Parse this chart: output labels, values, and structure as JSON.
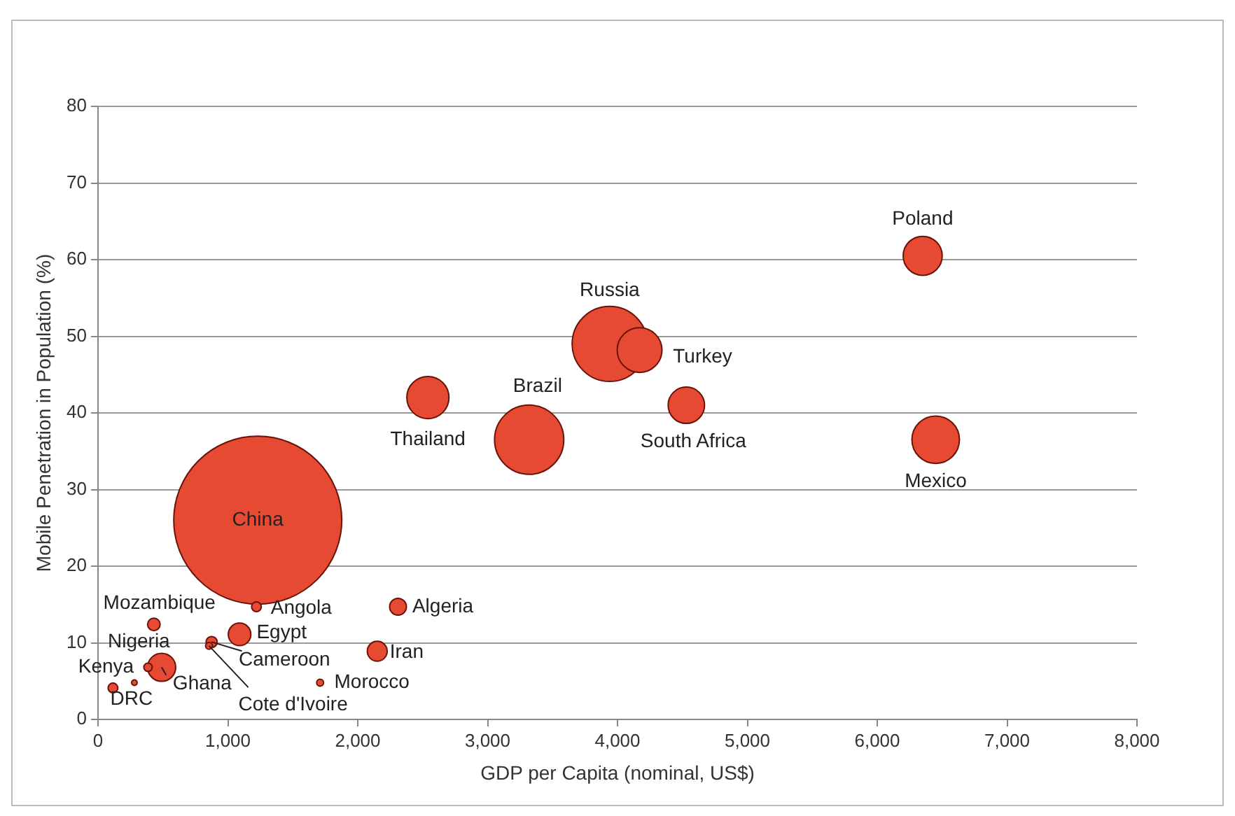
{
  "chart_data": {
    "type": "bubble",
    "xlabel": "GDP per Capita (nominal, US$)",
    "ylabel": "Mobile Penetration in Population (%)",
    "series": [
      {
        "color": "#e64a32",
        "x": [
          1230,
          6350,
          3940,
          4170,
          2540,
          3320,
          4530,
          6450,
          430,
          1220,
          2310,
          1090,
          875,
          855,
          2150,
          490,
          385,
          1710,
          280,
          115
        ],
        "values": [
          26,
          60.5,
          49,
          48.2,
          42,
          36.5,
          41,
          36.5,
          12.4,
          14.7,
          14.7,
          11.1,
          10.1,
          9.6,
          8.9,
          6.8,
          6.8,
          4.8,
          4.8,
          4.1
        ],
        "sizes": [
          1,
          0.054,
          0.2,
          0.071,
          0.063,
          0.17,
          0.047,
          0.08,
          0.0056,
          0.0034,
          0.01,
          0.018,
          0.0044,
          0.0017,
          0.014,
          0.028,
          0.0025,
          0.0017,
          0.0011,
          0.0034
        ]
      }
    ],
    "xlim": [
      0,
      8000
    ],
    "xticks": [
      0,
      {
        "value": 1000,
        "label": "1,000"
      },
      {
        "value": 2000,
        "label": "2,000"
      },
      {
        "value": 3000,
        "label": "3,000"
      },
      {
        "value": 4000,
        "label": "4,000"
      },
      {
        "value": 5000,
        "label": "5,000"
      },
      {
        "value": 6000,
        "label": "6,000"
      },
      {
        "value": 7000,
        "label": "7,000"
      },
      {
        "value": 8000,
        "label": "8,000"
      }
    ],
    "ylim": [
      0,
      80
    ],
    "yticks": [
      0,
      10,
      20,
      30,
      40,
      50,
      60,
      70,
      80
    ],
    "grid": "y",
    "legend": false,
    "annotations": [
      {
        "text": "China",
        "x": 1230,
        "y": 26
      },
      {
        "text": "Poland",
        "x": 6350,
        "y": 60.5
      },
      {
        "text": "Russia",
        "x": 3940,
        "y": 49
      },
      {
        "text": "Turkey",
        "x": 4170,
        "y": 48.2
      },
      {
        "text": "Brazil",
        "x": 3320,
        "y": 36.5
      },
      {
        "text": "Thailand",
        "x": 2540,
        "y": 42
      },
      {
        "text": "South Africa",
        "x": 4530,
        "y": 41
      },
      {
        "text": "Mexico",
        "x": 6450,
        "y": 36.5
      },
      {
        "text": "Mozambique",
        "x": 430,
        "y": 12.4
      },
      {
        "text": "Angola",
        "x": 1220,
        "y": 14.7
      },
      {
        "text": "Algeria",
        "x": 2310,
        "y": 14.7
      },
      {
        "text": "Egypt",
        "x": 1090,
        "y": 11.1
      },
      {
        "text": "Nigeria",
        "x": 875,
        "y": 10.1
      },
      {
        "text": "Cameroon",
        "x": 875,
        "y": 10.1
      },
      {
        "text": "Iran",
        "x": 2150,
        "y": 8.9
      },
      {
        "text": "Kenya",
        "x": 385,
        "y": 6.8
      },
      {
        "text": "Ghana",
        "x": 490,
        "y": 6.8
      },
      {
        "text": "Morocco",
        "x": 1710,
        "y": 4.8
      },
      {
        "text": "DRC",
        "x": 280,
        "y": 4.8
      },
      {
        "text": "Cote d'Ivoire",
        "x": 855,
        "y": 9.6
      }
    ]
  }
}
